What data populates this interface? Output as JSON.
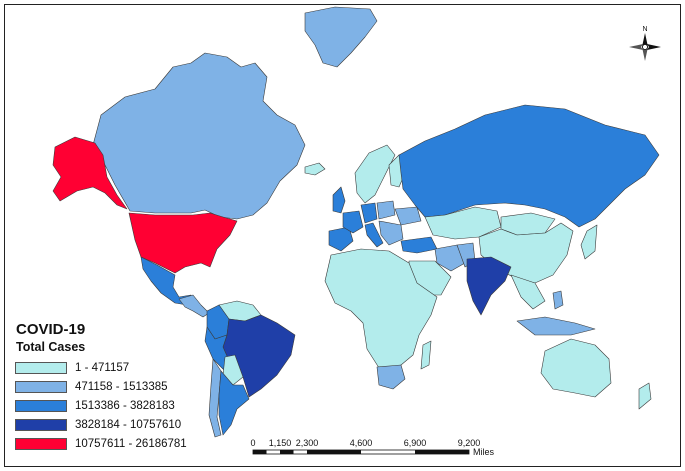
{
  "legend": {
    "title": "COVID-19",
    "subtitle": "Total Cases",
    "classes": [
      {
        "label": "1 - 471157",
        "color": "#b3ecec"
      },
      {
        "label": "471158 - 1513385",
        "color": "#7fb2e6"
      },
      {
        "label": "1513386 - 3828183",
        "color": "#2b7fd9"
      },
      {
        "label": "3828184 - 10757610",
        "color": "#1f3fa8"
      },
      {
        "label": "10757611 - 26186781",
        "color": "#ff0033"
      }
    ]
  },
  "scale_bar": {
    "ticks": [
      "0",
      "1,150",
      "2,300",
      "4,600",
      "6,900",
      "9,200"
    ],
    "unit": "Miles"
  },
  "north_arrow": {
    "label": "N"
  },
  "regions": {
    "alaska": {
      "cls": 4
    },
    "canada": {
      "cls": 1
    },
    "usa": {
      "cls": 4
    },
    "mexico": {
      "cls": 2
    },
    "central_america": {
      "cls": 1
    },
    "greenland": {
      "cls": 1
    },
    "colombia": {
      "cls": 2
    },
    "venezuela": {
      "cls": 0
    },
    "peru": {
      "cls": 2
    },
    "brazil": {
      "cls": 3
    },
    "bolivia": {
      "cls": 0
    },
    "chile": {
      "cls": 1
    },
    "argentina": {
      "cls": 2
    },
    "uk": {
      "cls": 2
    },
    "iceland": {
      "cls": 0
    },
    "norway_sweden": {
      "cls": 0
    },
    "finland": {
      "cls": 0
    },
    "iberia": {
      "cls": 2
    },
    "france": {
      "cls": 2
    },
    "italy": {
      "cls": 2
    },
    "germany": {
      "cls": 2
    },
    "poland": {
      "cls": 1
    },
    "ukraine": {
      "cls": 1
    },
    "balkans": {
      "cls": 1
    },
    "turkey": {
      "cls": 2
    },
    "russia": {
      "cls": 2
    },
    "kazakhstan": {
      "cls": 0
    },
    "mongolia": {
      "cls": 0
    },
    "china": {
      "cls": 0
    },
    "iran": {
      "cls": 1
    },
    "saudi_arabia": {
      "cls": 0
    },
    "pakistan": {
      "cls": 1
    },
    "india": {
      "cls": 3
    },
    "southeast_asia": {
      "cls": 0
    },
    "indonesia": {
      "cls": 1
    },
    "philippines": {
      "cls": 1
    },
    "japan": {
      "cls": 0
    },
    "africa": {
      "cls": 0
    },
    "south_africa": {
      "cls": 1
    },
    "madagascar": {
      "cls": 0
    },
    "australia": {
      "cls": 0
    },
    "new_zealand": {
      "cls": 0
    }
  }
}
